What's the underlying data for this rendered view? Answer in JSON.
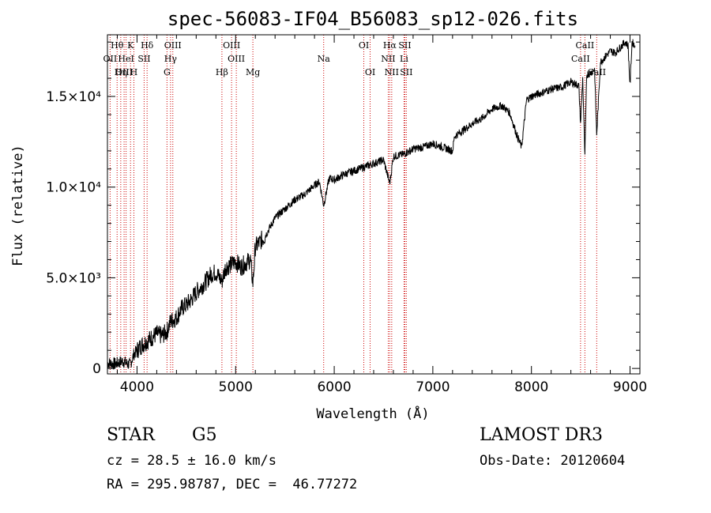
{
  "chart_data": {
    "type": "line",
    "title": "spec-56083-IF04_B56083_sp12-026.fits",
    "xlabel": "Wavelength (Å)",
    "ylabel": "Flux (relative)",
    "xlim": [
      3700,
      9100
    ],
    "ylim": [
      -300,
      18400
    ],
    "x_ticks": [
      {
        "value": 4000,
        "label": "4000"
      },
      {
        "value": 5000,
        "label": "5000"
      },
      {
        "value": 6000,
        "label": "6000"
      },
      {
        "value": 7000,
        "label": "7000"
      },
      {
        "value": 8000,
        "label": "8000"
      },
      {
        "value": 9000,
        "label": "9000"
      }
    ],
    "y_ticks": [
      {
        "value": 0,
        "label": "0"
      },
      {
        "value": 5000,
        "label": "5.0×10³"
      },
      {
        "value": 10000,
        "label": "1.0×10⁴"
      },
      {
        "value": 15000,
        "label": "1.5×10⁴"
      }
    ],
    "series": [
      {
        "name": "Flux",
        "x": [
          3700,
          3780,
          3850,
          3930,
          3970,
          4000,
          4050,
          4100,
          4150,
          4200,
          4250,
          4300,
          4340,
          4400,
          4450,
          4500,
          4550,
          4600,
          4650,
          4700,
          4750,
          4800,
          4861,
          4900,
          4950,
          5000,
          5050,
          5100,
          5150,
          5175,
          5200,
          5300,
          5400,
          5500,
          5600,
          5700,
          5800,
          5850,
          5893,
          5950,
          6000,
          6100,
          6200,
          6300,
          6400,
          6500,
          6563,
          6600,
          6700,
          6800,
          6900,
          7000,
          7100,
          7200,
          7220,
          7300,
          7400,
          7500,
          7600,
          7700,
          7780,
          7850,
          7900,
          7950,
          8000,
          8100,
          8200,
          8300,
          8400,
          8480,
          8498,
          8520,
          8542,
          8560,
          8600,
          8640,
          8662,
          8700,
          8750,
          8800,
          8850,
          8900,
          8950,
          8980,
          9000,
          9020,
          9050
        ],
        "y": [
          300,
          250,
          400,
          200,
          800,
          1000,
          1300,
          1500,
          1700,
          1900,
          1800,
          2000,
          2600,
          2800,
          3300,
          3500,
          3800,
          4200,
          4500,
          4800,
          5200,
          5300,
          4800,
          5600,
          5700,
          5900,
          5600,
          5800,
          6000,
          4700,
          6700,
          7300,
          8300,
          8800,
          9300,
          9600,
          10100,
          10300,
          9000,
          10500,
          10400,
          10700,
          10900,
          11100,
          11300,
          11500,
          10200,
          11700,
          11800,
          12100,
          12200,
          12400,
          12200,
          12000,
          12800,
          13100,
          13500,
          13800,
          14300,
          14500,
          14100,
          12900,
          12200,
          14800,
          15000,
          15200,
          15400,
          15500,
          15800,
          15600,
          13500,
          16000,
          11600,
          16200,
          16300,
          16500,
          12900,
          16900,
          17200,
          17500,
          17400,
          17700,
          18000,
          17800,
          15600,
          18000,
          17800
        ]
      }
    ],
    "lines": [
      {
        "label": "Hθ",
        "wl": 3798,
        "row": 0
      },
      {
        "label": "K",
        "wl": 3934,
        "row": 0
      },
      {
        "label": "Hδ",
        "wl": 4102,
        "row": 0
      },
      {
        "label": "OIII",
        "wl": 4363,
        "row": 0
      },
      {
        "label": "OIII",
        "wl": 4959,
        "row": 0
      },
      {
        "label": "OI",
        "wl": 6300,
        "row": 0
      },
      {
        "label": "Hα",
        "wl": 6563,
        "row": 0
      },
      {
        "label": "SII",
        "wl": 6716,
        "row": 0
      },
      {
        "label": "CaII",
        "wl": 8542,
        "row": 0
      },
      {
        "label": "OII",
        "wl": 3727,
        "row": 1
      },
      {
        "label": "HeI",
        "wl": 3889,
        "row": 1
      },
      {
        "label": "SII",
        "wl": 4072,
        "row": 1
      },
      {
        "label": "Hγ",
        "wl": 4340,
        "row": 1
      },
      {
        "label": "OIII",
        "wl": 5007,
        "row": 1
      },
      {
        "label": "Na",
        "wl": 5893,
        "row": 1
      },
      {
        "label": "NII",
        "wl": 6548,
        "row": 1
      },
      {
        "label": "Li",
        "wl": 6708,
        "row": 1
      },
      {
        "label": "CaII",
        "wl": 8498,
        "row": 1
      },
      {
        "label": "OIII",
        "wl": 3869,
        "row": 2
      },
      {
        "label": "Hη",
        "wl": 3835,
        "row": 2
      },
      {
        "label": "H",
        "wl": 3968,
        "row": 2
      },
      {
        "label": "G",
        "wl": 4304,
        "row": 2
      },
      {
        "label": "Hβ",
        "wl": 4861,
        "row": 2
      },
      {
        "label": "Mg",
        "wl": 5175,
        "row": 2
      },
      {
        "label": "OI",
        "wl": 6364,
        "row": 2
      },
      {
        "label": "NII",
        "wl": 6583,
        "row": 2
      },
      {
        "label": "SII",
        "wl": 6731,
        "row": 2
      },
      {
        "label": "CaII",
        "wl": 8662,
        "row": 2
      }
    ],
    "line_color": "#cc0000"
  },
  "info": {
    "object_class": "STAR",
    "subclass": "G5",
    "survey": "LAMOST DR3",
    "cz": "cz = 28.5 ± 16.0 km/s",
    "obs_date": "Obs-Date: 20120604",
    "coords": "RA = 295.98787, DEC =  46.77272"
  }
}
